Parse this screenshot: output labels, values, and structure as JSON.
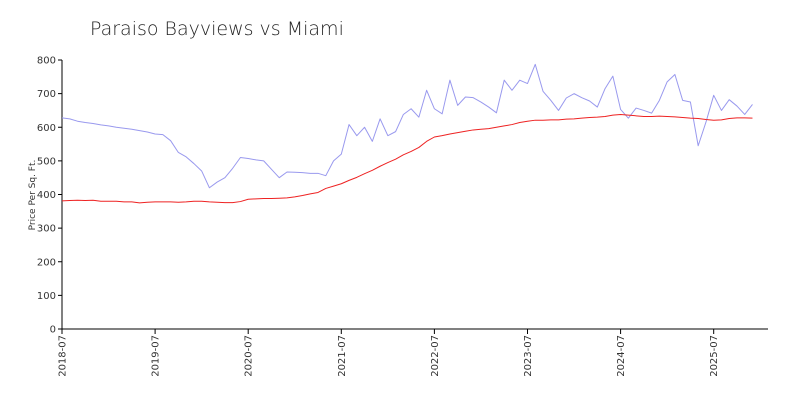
{
  "chart_data": {
    "type": "line",
    "title": "Paraiso Bayviews vs Miami",
    "xlabel": "",
    "ylabel": "Price Per Sq. Ft.",
    "ylim": [
      0,
      800
    ],
    "yticks": [
      0,
      100,
      200,
      300,
      400,
      500,
      600,
      700,
      800
    ],
    "xlim": [
      "2018-07",
      "2026-02"
    ],
    "xticks": [
      "2018-07",
      "2019-07",
      "2020-07",
      "2021-07",
      "2022-07",
      "2023-07",
      "2024-07",
      "2025-07"
    ],
    "grid": false,
    "legend": "none",
    "series": [
      {
        "color": "#9999ee",
        "points": [
          [
            "2018-07",
            628
          ],
          [
            "2018-08",
            625
          ],
          [
            "2018-09",
            618
          ],
          [
            "2018-10",
            614
          ],
          [
            "2018-11",
            611
          ],
          [
            "2018-12",
            607
          ],
          [
            "2019-01",
            604
          ],
          [
            "2019-02",
            600
          ],
          [
            "2019-03",
            597
          ],
          [
            "2019-04",
            594
          ],
          [
            "2019-05",
            590
          ],
          [
            "2019-06",
            586
          ],
          [
            "2019-07",
            580
          ],
          [
            "2019-08",
            578
          ],
          [
            "2019-09",
            560
          ],
          [
            "2019-10",
            525
          ],
          [
            "2019-11",
            512
          ],
          [
            "2019-12",
            492
          ],
          [
            "2020-01",
            470
          ],
          [
            "2020-02",
            420
          ],
          [
            "2020-03",
            437
          ],
          [
            "2020-04",
            450
          ],
          [
            "2020-05",
            478
          ],
          [
            "2020-06",
            510
          ],
          [
            "2020-07",
            507
          ],
          [
            "2020-08",
            503
          ],
          [
            "2020-09",
            500
          ],
          [
            "2020-10",
            475
          ],
          [
            "2020-11",
            450
          ],
          [
            "2020-12",
            467
          ],
          [
            "2021-01",
            466
          ],
          [
            "2021-02",
            465
          ],
          [
            "2021-03",
            463
          ],
          [
            "2021-04",
            463
          ],
          [
            "2021-05",
            456
          ],
          [
            "2021-06",
            500
          ],
          [
            "2021-07",
            520
          ],
          [
            "2021-08",
            608
          ],
          [
            "2021-09",
            575
          ],
          [
            "2021-10",
            600
          ],
          [
            "2021-11",
            558
          ],
          [
            "2021-12",
            625
          ],
          [
            "2022-01",
            575
          ],
          [
            "2022-02",
            587
          ],
          [
            "2022-03",
            638
          ],
          [
            "2022-04",
            655
          ],
          [
            "2022-05",
            630
          ],
          [
            "2022-06",
            710
          ],
          [
            "2022-07",
            655
          ],
          [
            "2022-08",
            640
          ],
          [
            "2022-09",
            740
          ],
          [
            "2022-10",
            665
          ],
          [
            "2022-11",
            690
          ],
          [
            "2022-12",
            688
          ],
          [
            "2023-01",
            675
          ],
          [
            "2023-02",
            660
          ],
          [
            "2023-03",
            643
          ],
          [
            "2023-04",
            740
          ],
          [
            "2023-05",
            710
          ],
          [
            "2023-06",
            740
          ],
          [
            "2023-07",
            730
          ],
          [
            "2023-08",
            787
          ],
          [
            "2023-09",
            707
          ],
          [
            "2023-10",
            680
          ],
          [
            "2023-11",
            650
          ],
          [
            "2023-12",
            687
          ],
          [
            "2024-01",
            700
          ],
          [
            "2024-02",
            688
          ],
          [
            "2024-03",
            678
          ],
          [
            "2024-04",
            660
          ],
          [
            "2024-05",
            715
          ],
          [
            "2024-06",
            752
          ],
          [
            "2024-07",
            653
          ],
          [
            "2024-08",
            627
          ],
          [
            "2024-09",
            657
          ],
          [
            "2024-10",
            650
          ],
          [
            "2024-11",
            642
          ],
          [
            "2024-12",
            680
          ],
          [
            "2025-01",
            735
          ],
          [
            "2025-02",
            757
          ],
          [
            "2025-03",
            680
          ],
          [
            "2025-04",
            675
          ],
          [
            "2025-05",
            545
          ],
          [
            "2025-06",
            615
          ],
          [
            "2025-07",
            695
          ],
          [
            "2025-08",
            650
          ],
          [
            "2025-09",
            682
          ],
          [
            "2025-10",
            663
          ],
          [
            "2025-11",
            638
          ],
          [
            "2025-12",
            668
          ]
        ]
      },
      {
        "color": "#ee2222",
        "points": [
          [
            "2018-07",
            381
          ],
          [
            "2018-08",
            382
          ],
          [
            "2018-09",
            383
          ],
          [
            "2018-10",
            382
          ],
          [
            "2018-11",
            383
          ],
          [
            "2018-12",
            380
          ],
          [
            "2019-01",
            380
          ],
          [
            "2019-02",
            380
          ],
          [
            "2019-03",
            378
          ],
          [
            "2019-04",
            378
          ],
          [
            "2019-05",
            375
          ],
          [
            "2019-06",
            377
          ],
          [
            "2019-07",
            378
          ],
          [
            "2019-08",
            378
          ],
          [
            "2019-09",
            378
          ],
          [
            "2019-10",
            377
          ],
          [
            "2019-11",
            378
          ],
          [
            "2019-12",
            380
          ],
          [
            "2020-01",
            380
          ],
          [
            "2020-02",
            378
          ],
          [
            "2020-03",
            377
          ],
          [
            "2020-04",
            376
          ],
          [
            "2020-05",
            376
          ],
          [
            "2020-06",
            379
          ],
          [
            "2020-07",
            386
          ],
          [
            "2020-08",
            387
          ],
          [
            "2020-09",
            388
          ],
          [
            "2020-10",
            388
          ],
          [
            "2020-11",
            389
          ],
          [
            "2020-12",
            390
          ],
          [
            "2021-01",
            393
          ],
          [
            "2021-02",
            397
          ],
          [
            "2021-03",
            402
          ],
          [
            "2021-04",
            406
          ],
          [
            "2021-05",
            418
          ],
          [
            "2021-06",
            425
          ],
          [
            "2021-07",
            432
          ],
          [
            "2021-08",
            442
          ],
          [
            "2021-09",
            451
          ],
          [
            "2021-10",
            462
          ],
          [
            "2021-11",
            472
          ],
          [
            "2021-12",
            484
          ],
          [
            "2022-01",
            495
          ],
          [
            "2022-02",
            505
          ],
          [
            "2022-03",
            518
          ],
          [
            "2022-04",
            528
          ],
          [
            "2022-05",
            540
          ],
          [
            "2022-06",
            558
          ],
          [
            "2022-07",
            571
          ],
          [
            "2022-08",
            575
          ],
          [
            "2022-09",
            580
          ],
          [
            "2022-10",
            584
          ],
          [
            "2022-11",
            588
          ],
          [
            "2022-12",
            592
          ],
          [
            "2023-01",
            594
          ],
          [
            "2023-02",
            596
          ],
          [
            "2023-03",
            600
          ],
          [
            "2023-04",
            604
          ],
          [
            "2023-05",
            608
          ],
          [
            "2023-06",
            614
          ],
          [
            "2023-07",
            618
          ],
          [
            "2023-08",
            621
          ],
          [
            "2023-09",
            621
          ],
          [
            "2023-10",
            622
          ],
          [
            "2023-11",
            622
          ],
          [
            "2023-12",
            624
          ],
          [
            "2024-01",
            625
          ],
          [
            "2024-02",
            627
          ],
          [
            "2024-03",
            629
          ],
          [
            "2024-04",
            630
          ],
          [
            "2024-05",
            632
          ],
          [
            "2024-06",
            636
          ],
          [
            "2024-07",
            638
          ],
          [
            "2024-08",
            636
          ],
          [
            "2024-09",
            634
          ],
          [
            "2024-10",
            632
          ],
          [
            "2024-11",
            632
          ],
          [
            "2024-12",
            633
          ],
          [
            "2025-01",
            632
          ],
          [
            "2025-02",
            631
          ],
          [
            "2025-03",
            629
          ],
          [
            "2025-04",
            627
          ],
          [
            "2025-05",
            626
          ],
          [
            "2025-06",
            623
          ],
          [
            "2025-07",
            621
          ],
          [
            "2025-08",
            622
          ],
          [
            "2025-09",
            626
          ],
          [
            "2025-10",
            628
          ],
          [
            "2025-11",
            628
          ],
          [
            "2025-12",
            627
          ]
        ]
      }
    ]
  }
}
